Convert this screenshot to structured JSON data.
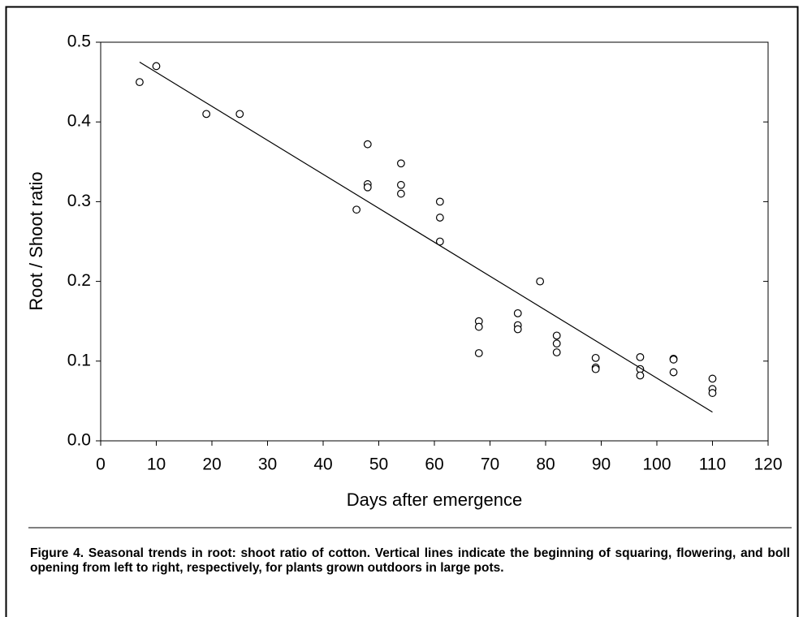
{
  "chart_data": {
    "type": "scatter",
    "xlabel": "Days after emergence",
    "ylabel": "Root / Shoot ratio",
    "caption": "Figure 4. Seasonal trends in root: shoot ratio of cotton. Vertical lines indicate the beginning of squaring, flowering, and boll opening from left to right, respectively, for plants grown outdoors in large pots.",
    "xlim": [
      0,
      120
    ],
    "xticks": [
      0,
      10,
      20,
      30,
      40,
      50,
      60,
      70,
      80,
      90,
      100,
      110,
      120
    ],
    "ylim": [
      0,
      0.5
    ],
    "yticks": [
      {
        "value": 0,
        "label": "0.0"
      },
      0.1,
      0.2,
      0.3,
      0.4,
      0.5
    ],
    "series": [
      {
        "type": "scatter",
        "color": "#000000",
        "x": [
          7,
          10,
          19,
          25,
          46,
          48,
          48,
          48,
          54,
          54,
          54,
          61,
          61,
          61,
          68,
          68,
          68,
          75,
          75,
          75,
          79,
          82,
          82,
          82,
          89,
          89,
          89,
          97,
          97,
          97,
          103,
          103,
          103,
          110,
          110,
          110
        ],
        "values": [
          0.45,
          0.47,
          0.41,
          0.41,
          0.29,
          0.372,
          0.322,
          0.318,
          0.348,
          0.321,
          0.31,
          0.3,
          0.28,
          0.25,
          0.15,
          0.143,
          0.11,
          0.16,
          0.145,
          0.14,
          0.2,
          0.132,
          0.122,
          0.111,
          0.104,
          0.092,
          0.09,
          0.105,
          0.09,
          0.082,
          0.103,
          0.102,
          0.086,
          0.078,
          0.065,
          0.06
        ]
      },
      {
        "type": "line",
        "color": "#000000",
        "x": [
          7,
          110
        ],
        "values": [
          0.475,
          0.036
        ]
      }
    ]
  }
}
